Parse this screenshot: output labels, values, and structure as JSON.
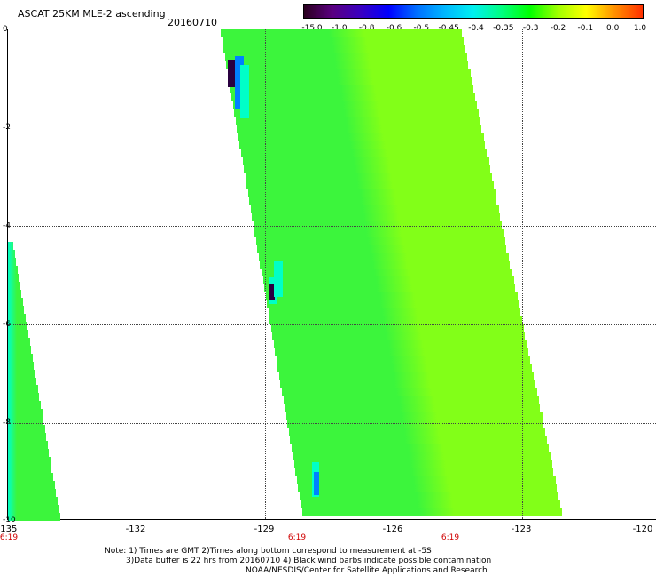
{
  "header": {
    "title": "ASCAT 25KM MLE-2 ascending",
    "date": "20160710"
  },
  "colorbar": {
    "labels": [
      "-15.0",
      "-1.0",
      "-0.8",
      "-0.6",
      "-0.5",
      "-0.45",
      "-0.4",
      "-0.35",
      "-0.3",
      "-0.2",
      "-0.1",
      "0.0",
      "1.0"
    ],
    "colors": [
      "#2a001e",
      "#5a0080",
      "#3a00c0",
      "#0000ff",
      "#0070ff",
      "#00b8ff",
      "#00f0f0",
      "#00ff80",
      "#00ff00",
      "#a0ff00",
      "#ffff00",
      "#ff9000",
      "#ff3000"
    ]
  },
  "axes": {
    "x_ticks": [
      "-135",
      "-132",
      "-129",
      "-126",
      "-123",
      "-120"
    ],
    "y_ticks": [
      "0",
      "-2",
      "-4",
      "-6",
      "-8",
      "-10"
    ],
    "time_labels": [
      "6:19",
      "6:19",
      "6:19"
    ]
  },
  "notes": {
    "line1": "Note: 1) Times are GMT 2)Times along bottom correspond to measurement at -5S",
    "line2": "3)Data buffer is 22 hrs from 20160710 4) Black wind barbs indicate possible contamination",
    "line3": "NOAA/NESDIS/Center for Satellite Applications and Research"
  },
  "map": {
    "colors": {
      "main": "#3cf53c",
      "light": "#82ff18",
      "cyan": "#00ffc8",
      "blue": "#0080ff",
      "dark": "#2a0040"
    }
  }
}
